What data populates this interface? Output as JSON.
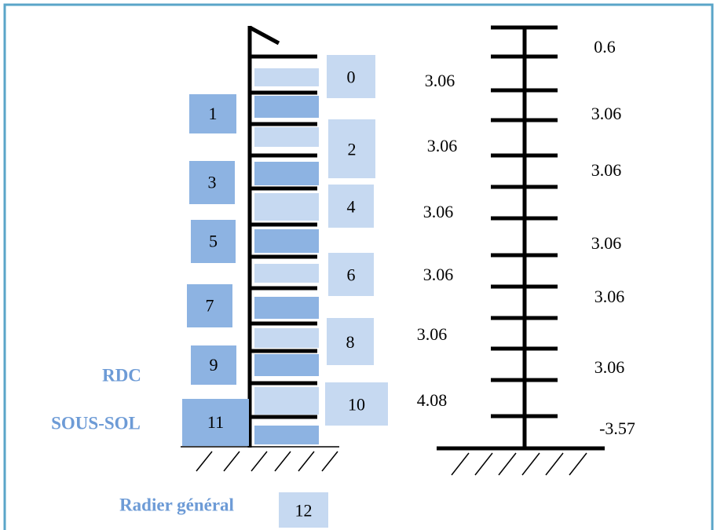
{
  "levels": {
    "left": [
      "1",
      "3",
      "5",
      "7",
      "9",
      "11"
    ],
    "right": [
      "0",
      "2",
      "4",
      "6",
      "8",
      "10",
      "12"
    ]
  },
  "heights": {
    "inner": [
      "3.06",
      "3.06",
      "3.06",
      "3.06",
      "3.06",
      "4.08"
    ],
    "outer": [
      "0.6",
      "3.06",
      "3.06",
      "3.06",
      "3.06",
      "3.06",
      "-3.57"
    ]
  },
  "labels": {
    "rdc": "RDC",
    "sous_sol": "SOUS-SOL",
    "radier": "Radier général"
  }
}
